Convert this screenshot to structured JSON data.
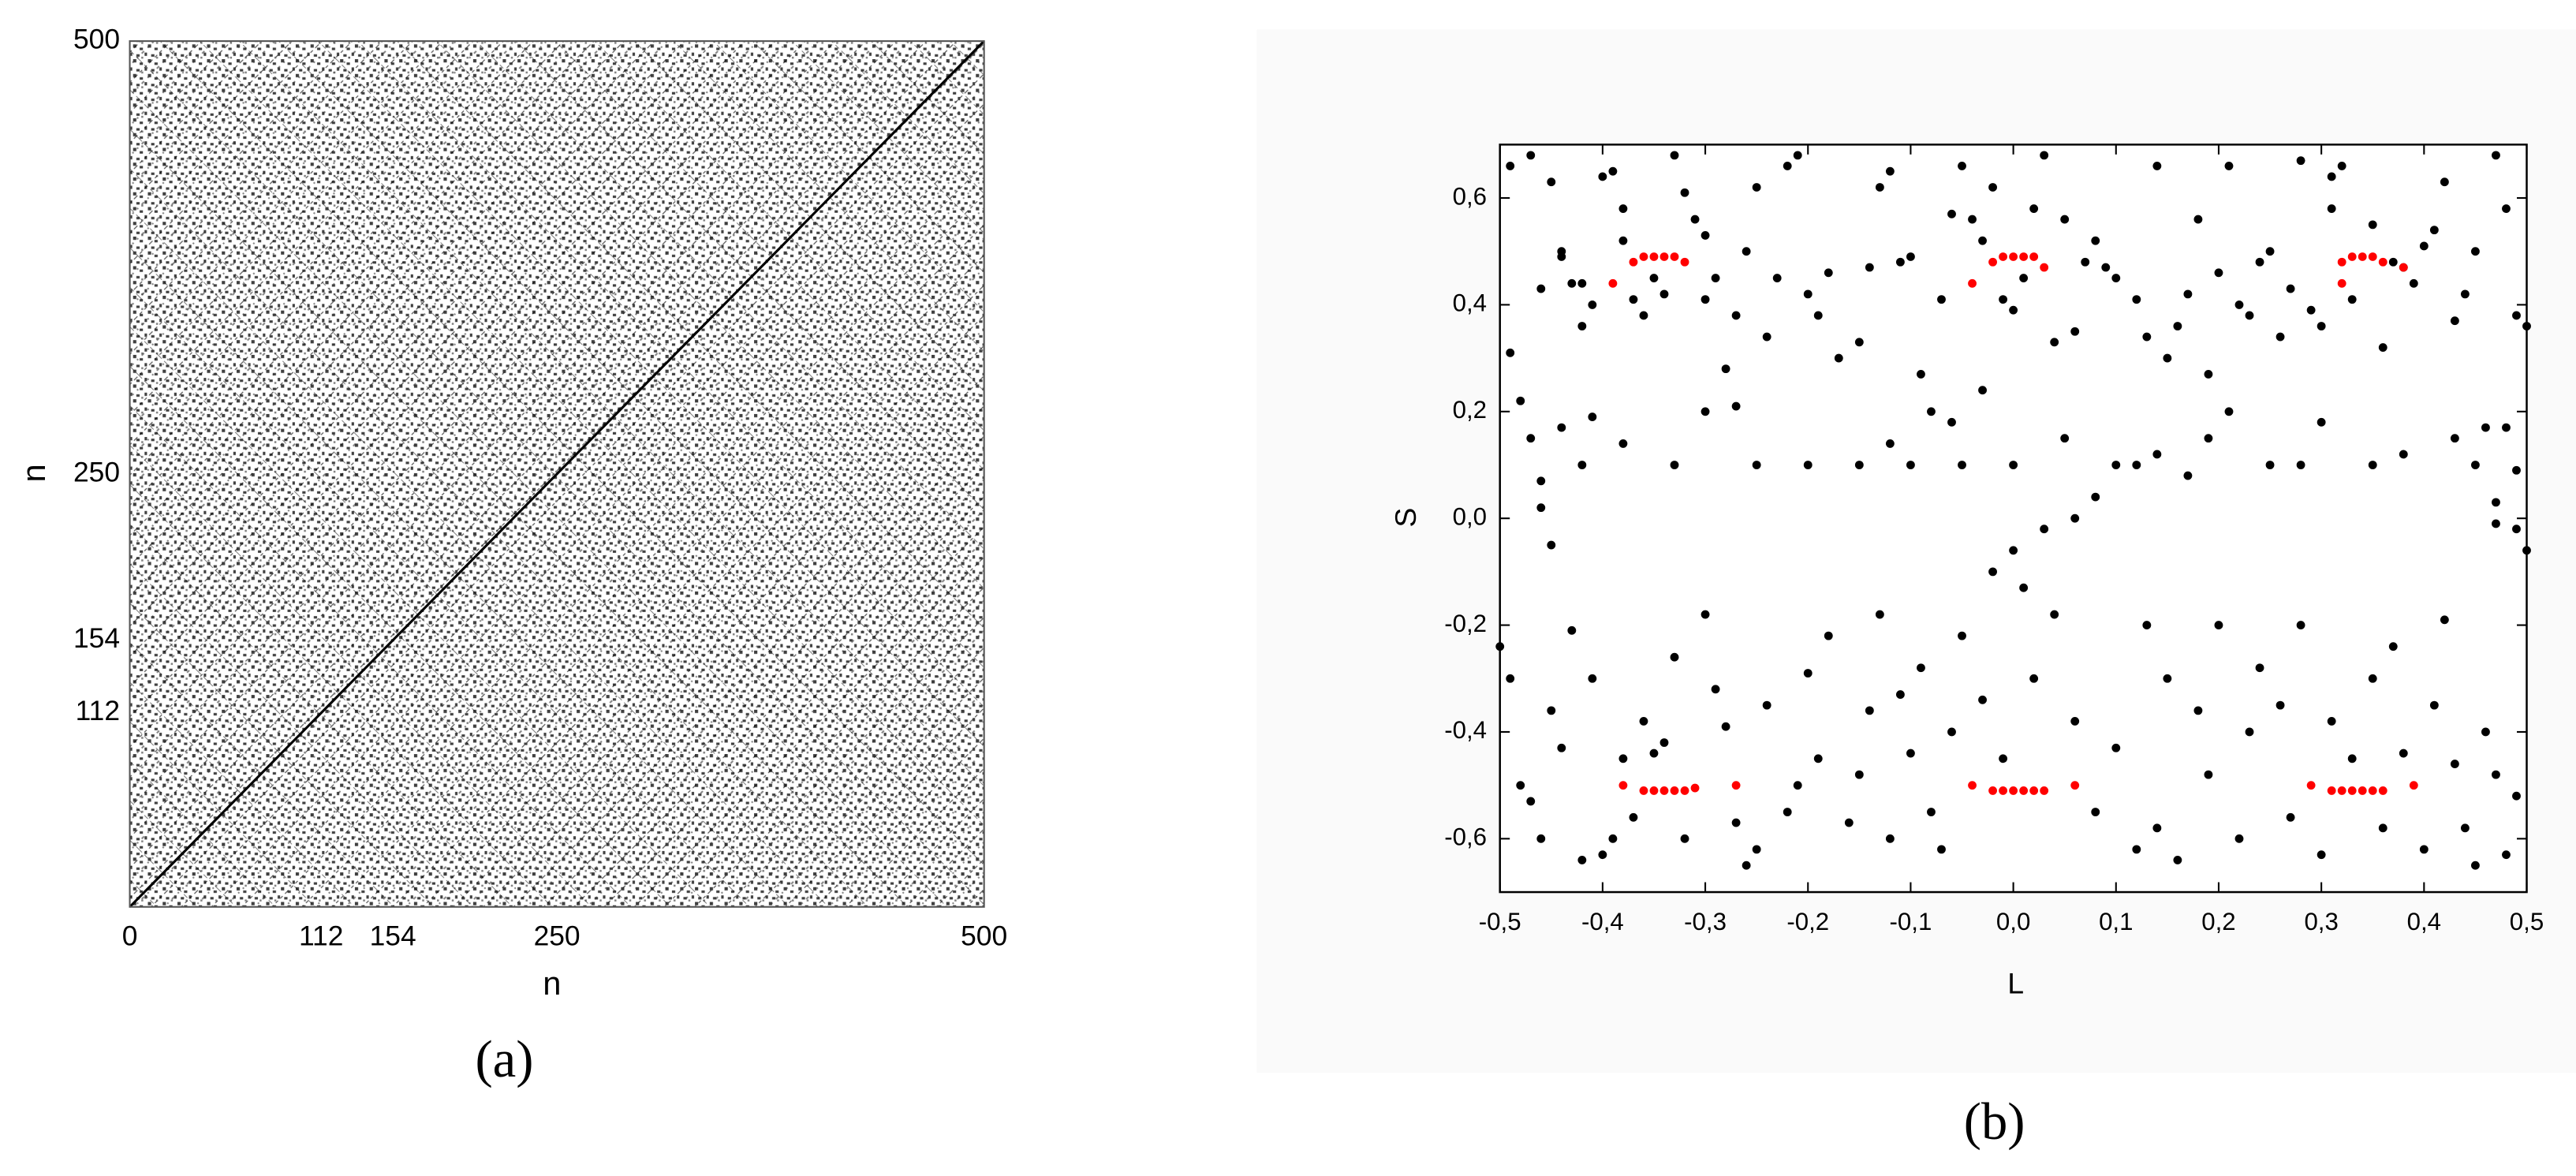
{
  "chart_data": [
    {
      "type": "recurrence",
      "label": "(a)",
      "xlabel": "n",
      "ylabel": "n",
      "xlim": [
        0,
        500
      ],
      "ylim": [
        0,
        500
      ],
      "xticks": [
        0,
        112,
        154,
        250,
        500
      ],
      "yticks": [
        112,
        154,
        250,
        500
      ]
    },
    {
      "type": "scatter",
      "label": "(b)",
      "xlabel": "L",
      "ylabel": "S",
      "xlim": [
        -0.5,
        0.5
      ],
      "ylim": [
        -0.7,
        0.7
      ],
      "xticks": [
        {
          "value": -0.5,
          "label": "-0,5"
        },
        {
          "value": -0.4,
          "label": "-0,4"
        },
        {
          "value": -0.3,
          "label": "-0,3"
        },
        {
          "value": -0.2,
          "label": "-0,2"
        },
        {
          "value": -0.1,
          "label": "-0,1"
        },
        {
          "value": 0,
          "label": "0,0"
        },
        {
          "value": 0.1,
          "label": "0,1"
        },
        {
          "value": 0.2,
          "label": "0,2"
        },
        {
          "value": 0.3,
          "label": "0,3"
        },
        {
          "value": 0.4,
          "label": "0,4"
        },
        {
          "value": 0.5,
          "label": "0,5"
        }
      ],
      "yticks": [
        {
          "value": -0.6,
          "label": "-0,6"
        },
        {
          "value": -0.4,
          "label": "-0,4"
        },
        {
          "value": -0.2,
          "label": "-0,2"
        },
        {
          "value": 0,
          "label": "0,0"
        },
        {
          "value": 0.2,
          "label": "0,2"
        },
        {
          "value": 0.4,
          "label": "0,4"
        },
        {
          "value": 0.6,
          "label": "0,6"
        }
      ],
      "series": [
        {
          "color": "#000000",
          "x": [
            -0.49,
            -0.47,
            -0.45,
            -0.44,
            -0.44,
            -0.46,
            -0.43,
            -0.42,
            -0.41,
            -0.42,
            -0.4,
            -0.39,
            -0.38,
            -0.38,
            -0.37,
            -0.36,
            -0.35,
            -0.34,
            -0.33,
            -0.32,
            -0.31,
            -0.3,
            -0.3,
            -0.29,
            -0.28,
            -0.27,
            -0.26,
            -0.25,
            -0.24,
            -0.23,
            -0.22,
            -0.21,
            -0.2,
            -0.19,
            -0.18,
            -0.17,
            -0.15,
            -0.14,
            -0.13,
            -0.12,
            -0.11,
            -0.1,
            -0.09,
            -0.08,
            -0.07,
            -0.06,
            -0.05,
            -0.04,
            -0.03,
            -0.02,
            -0.01,
            0.0,
            0.01,
            0.02,
            0.03,
            0.04,
            0.05,
            0.06,
            0.07,
            0.08,
            0.09,
            0.1,
            0.12,
            0.13,
            0.14,
            0.15,
            0.16,
            0.17,
            0.18,
            0.19,
            0.2,
            0.21,
            0.22,
            0.23,
            0.24,
            0.25,
            0.26,
            0.27,
            0.28,
            0.29,
            0.3,
            0.31,
            0.31,
            0.32,
            0.33,
            0.35,
            0.36,
            0.37,
            0.38,
            0.39,
            0.4,
            0.41,
            0.42,
            0.43,
            0.44,
            0.45,
            0.47,
            0.48,
            0.49,
            0.5,
            -0.49,
            -0.48,
            -0.47,
            -0.46,
            -0.46,
            -0.45,
            -0.44,
            -0.42,
            -0.41,
            -0.38,
            -0.33,
            -0.3,
            -0.27,
            -0.25,
            -0.2,
            -0.15,
            -0.12,
            -0.1,
            -0.06,
            -0.05,
            -0.03,
            -0.02,
            0.0,
            0.0,
            0.01,
            0.03,
            0.05,
            0.06,
            0.08,
            0.1,
            0.12,
            0.14,
            0.17,
            0.19,
            0.21,
            0.25,
            0.28,
            0.3,
            0.35,
            0.38,
            0.43,
            0.45,
            0.46,
            0.47,
            0.48,
            0.49,
            0.49,
            0.5,
            0.47,
            -0.5,
            -0.49,
            -0.48,
            -0.47,
            -0.46,
            -0.45,
            -0.44,
            -0.43,
            -0.42,
            -0.41,
            -0.4,
            -0.39,
            -0.38,
            -0.37,
            -0.36,
            -0.35,
            -0.34,
            -0.33,
            -0.32,
            -0.3,
            -0.29,
            -0.28,
            -0.27,
            -0.26,
            -0.25,
            -0.24,
            -0.22,
            -0.21,
            -0.2,
            -0.19,
            -0.18,
            -0.16,
            -0.15,
            -0.14,
            -0.13,
            -0.12,
            -0.11,
            -0.1,
            -0.09,
            -0.08,
            -0.07,
            -0.06,
            -0.05,
            -0.03,
            -0.01,
            0.02,
            0.04,
            0.06,
            0.08,
            0.1,
            0.12,
            0.13,
            0.14,
            0.15,
            0.16,
            0.18,
            0.19,
            0.2,
            0.22,
            0.23,
            0.24,
            0.26,
            0.27,
            0.28,
            0.3,
            0.31,
            0.33,
            0.35,
            0.36,
            0.37,
            0.38,
            0.4,
            0.41,
            0.42,
            0.43,
            0.44,
            0.45,
            0.46,
            0.47,
            0.48,
            0.49
          ],
          "values": [
            0.66,
            0.68,
            0.63,
            0.49,
            0.5,
            0.43,
            0.44,
            0.44,
            0.4,
            0.36,
            0.64,
            0.65,
            0.58,
            0.52,
            0.41,
            0.38,
            0.45,
            0.42,
            0.68,
            0.61,
            0.56,
            0.53,
            0.41,
            0.45,
            0.28,
            0.38,
            0.5,
            0.62,
            0.34,
            0.45,
            0.66,
            0.68,
            0.42,
            0.38,
            0.46,
            0.3,
            0.33,
            0.47,
            0.62,
            0.65,
            0.48,
            0.49,
            0.27,
            0.2,
            0.41,
            0.57,
            0.66,
            0.56,
            0.52,
            0.62,
            0.41,
            0.39,
            0.45,
            0.58,
            0.68,
            0.33,
            0.56,
            0.35,
            0.48,
            0.52,
            0.47,
            0.45,
            0.41,
            0.34,
            0.66,
            0.3,
            0.36,
            0.42,
            0.56,
            0.27,
            0.46,
            0.66,
            0.4,
            0.38,
            0.48,
            0.5,
            0.34,
            0.43,
            0.67,
            0.39,
            0.36,
            0.58,
            0.64,
            0.66,
            0.41,
            0.55,
            0.32,
            0.48,
            0.47,
            0.44,
            0.51,
            0.54,
            0.63,
            0.37,
            0.42,
            0.5,
            0.68,
            0.58,
            0.38,
            0.36,
            0.31,
            0.22,
            0.15,
            0.07,
            0.02,
            -0.05,
            0.17,
            0.1,
            0.19,
            0.14,
            0.1,
            0.2,
            0.21,
            0.1,
            0.1,
            0.1,
            0.14,
            0.1,
            0.18,
            0.1,
            0.24,
            -0.1,
            -0.06,
            0.1,
            -0.13,
            -0.02,
            0.15,
            0.0,
            0.04,
            0.1,
            0.1,
            0.12,
            0.08,
            0.15,
            0.2,
            0.1,
            0.1,
            0.18,
            0.1,
            0.12,
            0.15,
            0.1,
            0.17,
            0.03,
            0.17,
            0.09,
            -0.02,
            -0.06,
            -0.01,
            -0.24,
            -0.3,
            -0.5,
            -0.53,
            -0.6,
            -0.36,
            -0.43,
            -0.21,
            -0.64,
            -0.3,
            -0.63,
            -0.6,
            -0.45,
            -0.56,
            -0.38,
            -0.44,
            -0.42,
            -0.26,
            -0.6,
            -0.18,
            -0.32,
            -0.39,
            -0.57,
            -0.65,
            -0.62,
            -0.35,
            -0.55,
            -0.5,
            -0.29,
            -0.45,
            -0.22,
            -0.57,
            -0.48,
            -0.36,
            -0.18,
            -0.6,
            -0.33,
            -0.44,
            -0.28,
            -0.55,
            -0.62,
            -0.4,
            -0.22,
            -0.34,
            -0.45,
            -0.3,
            -0.18,
            -0.38,
            -0.55,
            -0.43,
            -0.62,
            -0.2,
            -0.58,
            -0.3,
            -0.64,
            -0.36,
            -0.48,
            -0.2,
            -0.6,
            -0.4,
            -0.28,
            -0.35,
            -0.56,
            -0.2,
            -0.63,
            -0.38,
            -0.45,
            -0.3,
            -0.58,
            -0.24,
            -0.44,
            -0.62,
            -0.35,
            -0.19,
            -0.46,
            -0.58,
            -0.65,
            -0.4,
            -0.48,
            -0.63,
            -0.52
          ]
        },
        {
          "color": "#ff0000",
          "x": [
            -0.39,
            -0.37,
            -0.36,
            -0.35,
            -0.34,
            -0.33,
            -0.32,
            -0.04,
            -0.02,
            -0.01,
            0.0,
            0.01,
            0.02,
            0.03,
            0.32,
            0.32,
            0.33,
            0.34,
            0.35,
            0.36,
            0.38,
            -0.38,
            -0.36,
            -0.35,
            -0.34,
            -0.33,
            -0.32,
            -0.31,
            -0.27,
            -0.04,
            -0.02,
            -0.01,
            0.0,
            0.01,
            0.02,
            0.03,
            0.06,
            0.29,
            0.31,
            0.32,
            0.33,
            0.34,
            0.35,
            0.36,
            0.39
          ],
          "values": [
            0.44,
            0.48,
            0.49,
            0.49,
            0.49,
            0.49,
            0.48,
            0.44,
            0.48,
            0.49,
            0.49,
            0.49,
            0.49,
            0.47,
            0.44,
            0.48,
            0.49,
            0.49,
            0.49,
            0.48,
            0.47,
            -0.5,
            -0.51,
            -0.51,
            -0.51,
            -0.51,
            -0.51,
            -0.505,
            -0.5,
            -0.5,
            -0.51,
            -0.51,
            -0.51,
            -0.51,
            -0.51,
            -0.51,
            -0.5,
            -0.5,
            -0.51,
            -0.51,
            -0.51,
            -0.51,
            -0.51,
            -0.51,
            -0.5
          ]
        }
      ]
    }
  ]
}
